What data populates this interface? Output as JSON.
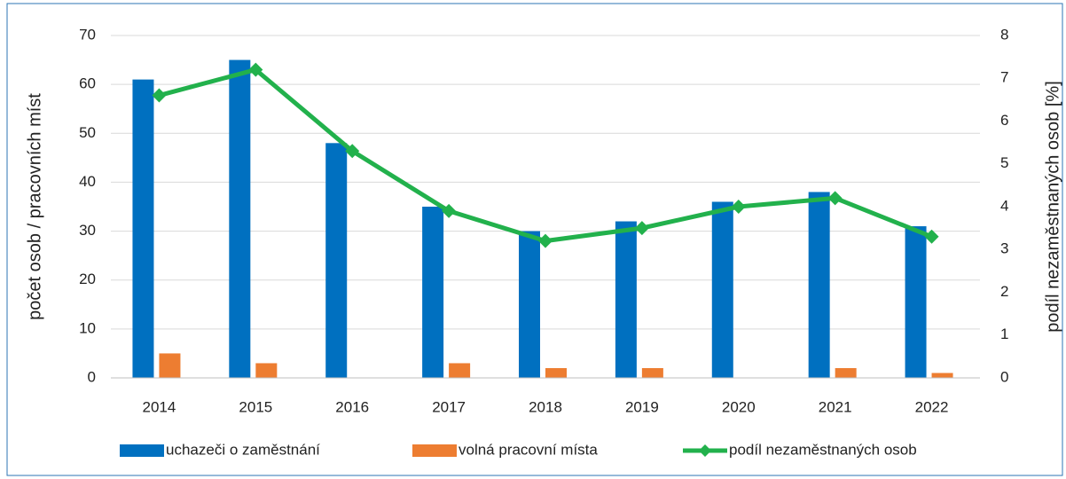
{
  "chart_data": {
    "type": "bar-line",
    "categories": [
      "2014",
      "2015",
      "2016",
      "2017",
      "2018",
      "2019",
      "2020",
      "2021",
      "2022"
    ],
    "y_label": "počet osob / pracovních míst",
    "y2_label": "podíl nezaměstnaných osob [%]",
    "ylim": [
      0,
      70
    ],
    "yticks": [
      0,
      10,
      20,
      30,
      40,
      50,
      60,
      70
    ],
    "y2lim": [
      0,
      8
    ],
    "y2ticks": [
      0,
      1,
      2,
      3,
      4,
      5,
      6,
      7,
      8
    ],
    "grid": true,
    "legend": "bottom",
    "series": [
      {
        "name": "uchazeči o zaměstnání",
        "type": "bar",
        "color": "#0070c0",
        "values": [
          61,
          65,
          48,
          35,
          30,
          32,
          36,
          38,
          31
        ]
      },
      {
        "name": "volná pracovní místa",
        "type": "bar",
        "color": "#ed7d31",
        "values": [
          5,
          3,
          0,
          3,
          2,
          2,
          0,
          2,
          1
        ]
      },
      {
        "name": "podíl nezaměstnaných osob",
        "type": "line",
        "axis": "y2",
        "color": "#22b14c",
        "values": [
          6.6,
          7.2,
          5.3,
          3.9,
          3.2,
          3.5,
          4.0,
          4.2,
          3.3
        ]
      }
    ]
  }
}
